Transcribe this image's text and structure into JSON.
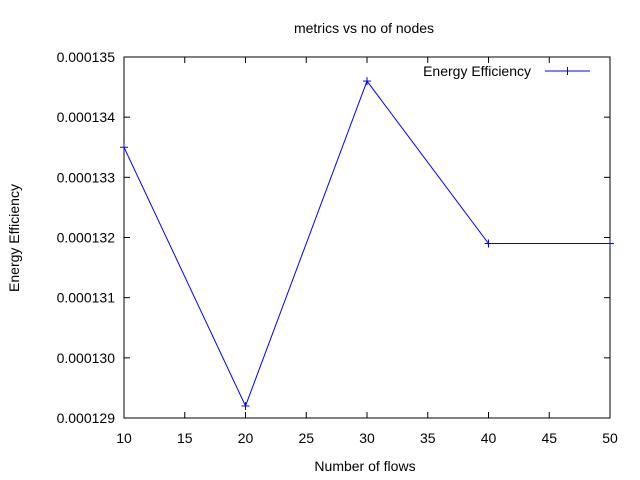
{
  "chart_data": {
    "type": "line",
    "title": "metrics vs no of nodes",
    "xlabel": "Number of flows",
    "ylabel": "Energy Efficiency",
    "xlim": [
      10,
      50
    ],
    "ylim": [
      0.000129,
      0.000135
    ],
    "x_ticks": [
      "10",
      "15",
      "20",
      "25",
      "30",
      "35",
      "40",
      "45",
      "50"
    ],
    "y_ticks": [
      "0.000129",
      "0.000130",
      "0.000131",
      "0.000132",
      "0.000133",
      "0.000134",
      "0.000135"
    ],
    "legend_position": "top-right",
    "grid": false,
    "series": [
      {
        "name": "Energy Efficiency",
        "color": "#0000ff",
        "marker": "plus",
        "x": [
          10,
          20,
          30,
          40,
          50
        ],
        "y": [
          0.0001335,
          0.0001292,
          0.0001346,
          0.0001319,
          0.0001319
        ]
      }
    ]
  }
}
